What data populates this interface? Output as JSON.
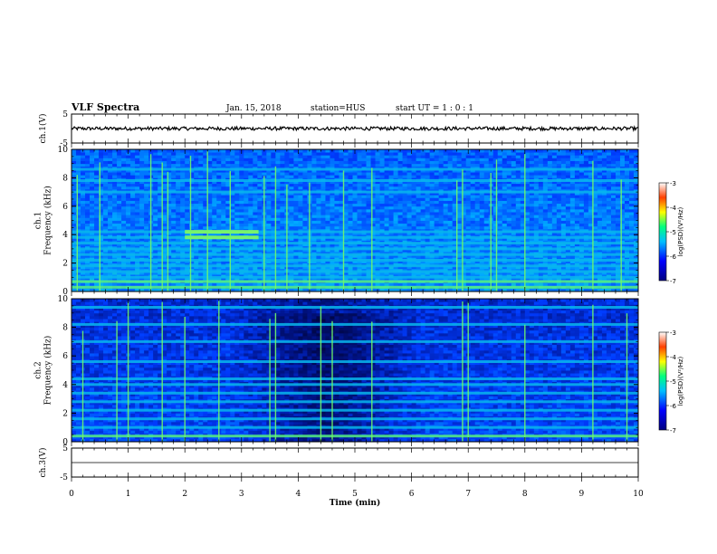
{
  "header": {
    "title": "VLF Spectra",
    "date": "Jan. 15, 2018",
    "station": "station=HUS",
    "start_ut": "start UT =  1 : 0  : 1"
  },
  "chart_data": [
    {
      "id": "waveform-ch1",
      "type": "line",
      "ylabel": "ch.1(V)",
      "ylim": [
        -5,
        5
      ],
      "yticks": [
        "5",
        "-5"
      ],
      "xlim": [
        0,
        10
      ],
      "description_values": {
        "baseline_V": 0.0,
        "amplitude_V": 0.6
      }
    },
    {
      "id": "spectrogram-ch1",
      "type": "heatmap",
      "ylabel": "ch.1\nFrequency (kHz)",
      "ylim": [
        0,
        10
      ],
      "yticks": [
        "0",
        "2",
        "4",
        "6",
        "8",
        "10"
      ],
      "xlim": [
        0,
        10
      ],
      "color_scale": {
        "label": "log(PSD)(V²/Hz)",
        "range": [
          -7,
          -3
        ],
        "ticks": [
          "-3",
          "-4",
          "-5",
          "-6",
          "-7"
        ]
      },
      "bands_kHz": [
        0.3,
        0.7,
        1.0,
        1.4,
        1.8,
        2.2,
        2.6,
        3.0,
        3.4,
        3.8,
        4.2,
        7.0,
        7.8,
        8.6
      ],
      "active_band_times_min": [
        [
          2.0,
          3.3
        ]
      ],
      "spike_times_min": [
        0.1,
        0.5,
        1.4,
        1.6,
        1.7,
        2.1,
        2.4,
        2.8,
        3.4,
        3.6,
        3.8,
        4.2,
        4.8,
        5.3,
        6.8,
        6.9,
        7.4,
        7.5,
        8.0,
        9.2,
        9.7
      ]
    },
    {
      "id": "spectrogram-ch2",
      "type": "heatmap",
      "ylabel": "ch.2\nFrequency (kHz)",
      "ylim": [
        0,
        10
      ],
      "yticks": [
        "0",
        "2",
        "4",
        "6",
        "8",
        "10"
      ],
      "xlim": [
        0,
        10
      ],
      "color_scale": {
        "label": "log(PSD)(V²/Hz)",
        "range": [
          -7,
          -3
        ],
        "ticks": [
          "-3",
          "-4",
          "-5",
          "-6",
          "-7"
        ]
      },
      "bands_kHz": [
        0.4,
        1.0,
        1.6,
        2.2,
        2.8,
        3.4,
        4.0,
        4.4,
        5.6,
        7.0,
        8.2,
        9.4
      ],
      "spike_times_min": [
        0.2,
        0.8,
        1.0,
        1.6,
        2.0,
        2.6,
        3.5,
        3.6,
        4.4,
        4.6,
        5.3,
        6.9,
        7.0,
        8.0,
        9.2,
        9.8
      ]
    },
    {
      "id": "waveform-ch3",
      "type": "line",
      "ylabel": "ch.3(V)",
      "ylim": [
        -5,
        5
      ],
      "yticks": [
        "5",
        "-5"
      ],
      "xlim": [
        0,
        10
      ],
      "xlabel": "Time  (min)",
      "xticks": [
        "0",
        "1",
        "2",
        "3",
        "4",
        "5",
        "6",
        "7",
        "8",
        "9",
        "10"
      ],
      "description_values": {
        "baseline_V": 0.0,
        "amplitude_V": 0.0
      }
    }
  ],
  "colors": {
    "background": "#ffffff",
    "axis": "#000000",
    "heat_low": "#000020",
    "heat_mid": "#0040ff",
    "heat_hi": "#40e0a0",
    "heat_peak": "#ff0000"
  }
}
